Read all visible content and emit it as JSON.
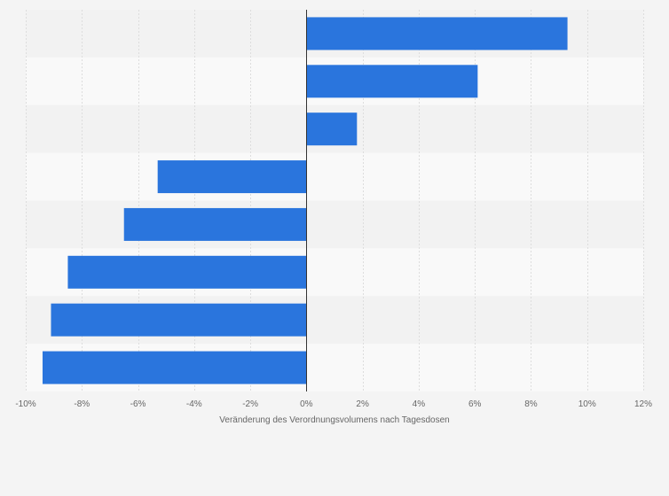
{
  "chart_data": {
    "type": "bar",
    "orientation": "horizontal",
    "categories": [
      "",
      "",
      "",
      "",
      "",
      "",
      "",
      ""
    ],
    "values": [
      9.3,
      6.1,
      1.8,
      -5.3,
      -6.5,
      -8.5,
      -9.1,
      -9.4
    ],
    "xlabel": "Veränderung des Verordnungsvolumens nach Tagesdosen",
    "ylabel": "",
    "xlim": [
      -10,
      12
    ],
    "xticks": [
      -10,
      -8,
      -6,
      -4,
      -2,
      0,
      2,
      4,
      6,
      8,
      10,
      12
    ],
    "xtick_labels": [
      "-10%",
      "-8%",
      "-6%",
      "-4%",
      "-2%",
      "0%",
      "2%",
      "4%",
      "6%",
      "8%",
      "10%",
      "12%"
    ],
    "grid": true,
    "legend": "none",
    "colors": {
      "bar": "#2a75dd",
      "background": "#f4f4f4",
      "band_light": "#f9f9f9",
      "band_dark": "#f2f2f2",
      "grid": "#dddddd",
      "zero_line": "#333333"
    }
  }
}
